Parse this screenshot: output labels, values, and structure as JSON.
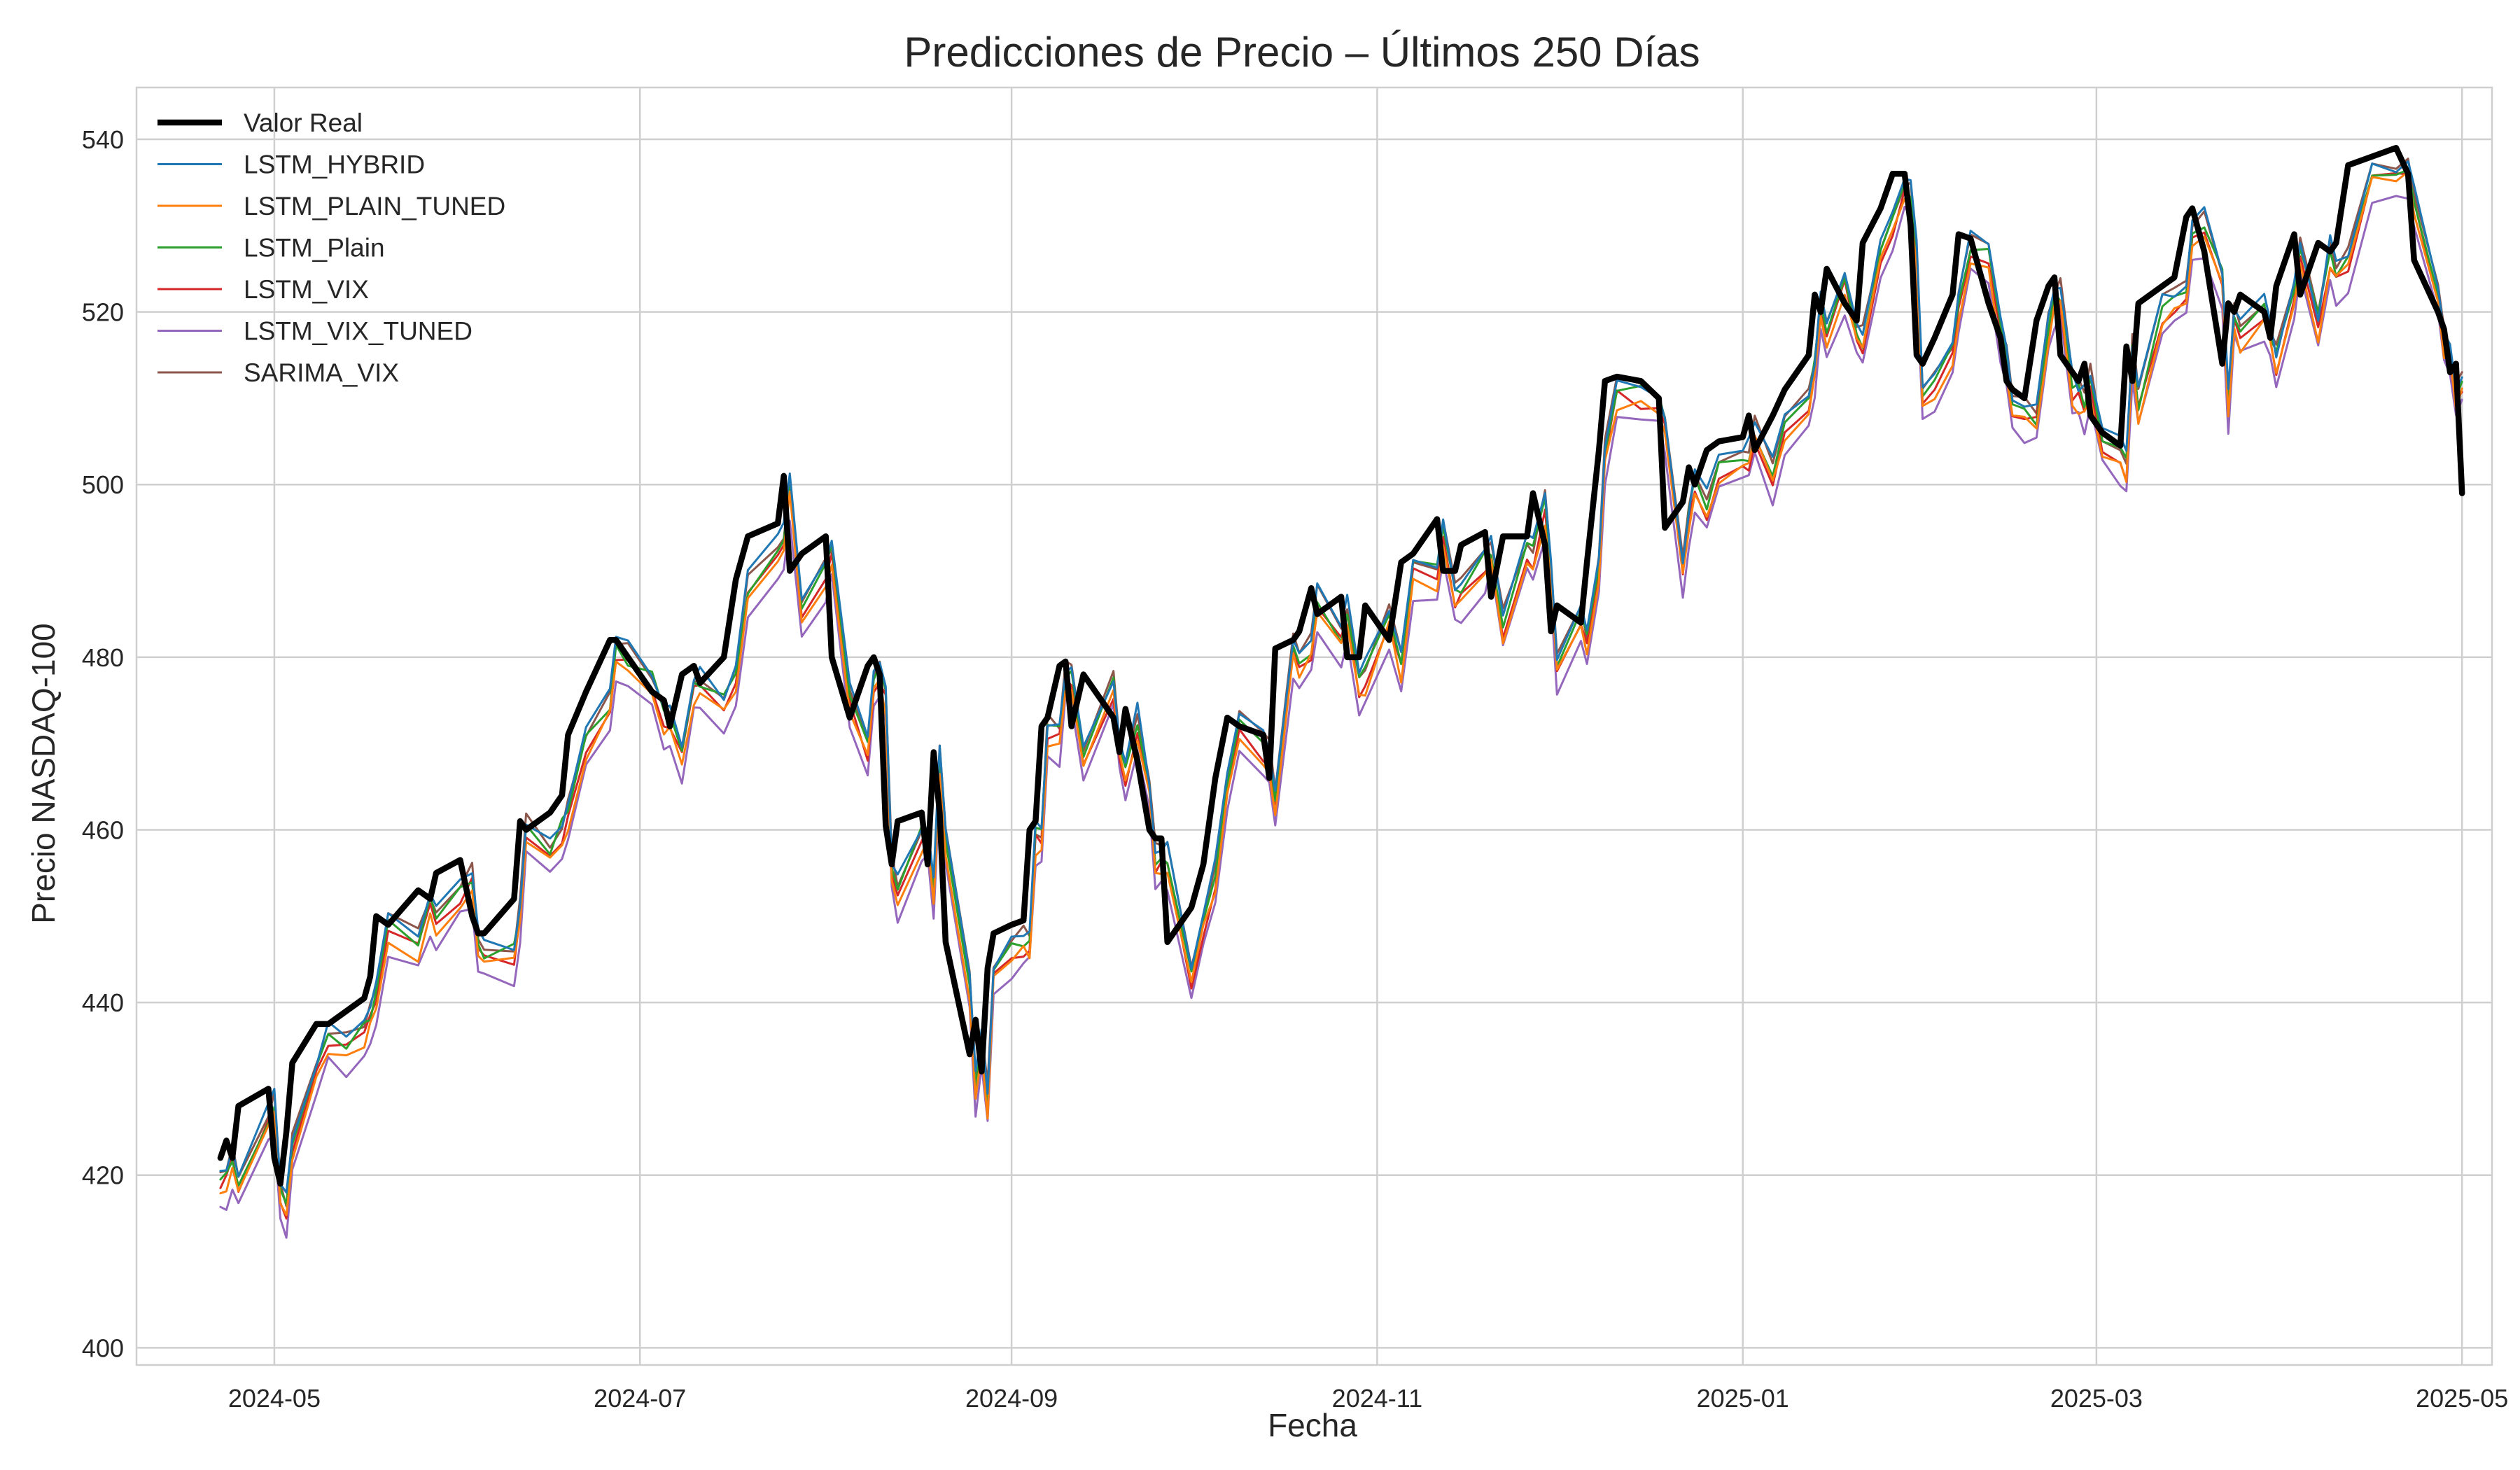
{
  "chart_data": {
    "type": "line",
    "title": "Predicciones de Precio – Últimos 250 Días",
    "xlabel": "Fecha",
    "ylabel": "Precio NASDAQ-100",
    "x_type": "date",
    "xlim": [
      "2024-04-08",
      "2025-05-06"
    ],
    "ylim": [
      398,
      546
    ],
    "x_ticks": [
      "2024-05-01",
      "2024-07-01",
      "2024-09-01",
      "2024-11-01",
      "2025-01-01",
      "2025-03-01",
      "2025-05-01"
    ],
    "x_tick_labels": [
      "2024-05",
      "2024-07",
      "2024-09",
      "2024-11",
      "2025-01",
      "2025-03",
      "2025-05"
    ],
    "y_ticks": [
      400,
      420,
      440,
      460,
      480,
      500,
      520,
      540
    ],
    "y_tick_labels": [
      "400",
      "420",
      "440",
      "460",
      "480",
      "500",
      "520",
      "540"
    ],
    "grid": true,
    "legend_position": "top-left",
    "actual_points": [
      [
        "2024-04-22",
        422
      ],
      [
        "2024-04-23",
        424
      ],
      [
        "2024-04-24",
        422
      ],
      [
        "2024-04-25",
        428
      ],
      [
        "2024-04-30",
        430
      ],
      [
        "2024-05-01",
        422
      ],
      [
        "2024-05-02",
        419
      ],
      [
        "2024-05-03",
        425
      ],
      [
        "2024-05-04",
        433
      ],
      [
        "2024-05-08",
        437.5
      ],
      [
        "2024-05-10",
        437.5
      ],
      [
        "2024-05-13",
        439
      ],
      [
        "2024-05-16",
        440.5
      ],
      [
        "2024-05-17",
        443
      ],
      [
        "2024-05-18",
        450
      ],
      [
        "2024-05-20",
        449
      ],
      [
        "2024-05-25",
        453
      ],
      [
        "2024-05-27",
        452
      ],
      [
        "2024-05-28",
        455
      ],
      [
        "2024-06-01",
        456.5
      ],
      [
        "2024-06-03",
        450
      ],
      [
        "2024-06-04",
        448
      ],
      [
        "2024-06-05",
        448
      ],
      [
        "2024-06-10",
        452
      ],
      [
        "2024-06-11",
        461
      ],
      [
        "2024-06-12",
        460
      ],
      [
        "2024-06-16",
        462
      ],
      [
        "2024-06-18",
        464
      ],
      [
        "2024-06-19",
        471
      ],
      [
        "2024-06-22",
        476
      ],
      [
        "2024-06-26",
        482
      ],
      [
        "2024-06-27",
        482
      ],
      [
        "2024-06-29",
        480
      ],
      [
        "2024-07-03",
        476
      ],
      [
        "2024-07-05",
        475
      ],
      [
        "2024-07-06",
        472
      ],
      [
        "2024-07-08",
        478
      ],
      [
        "2024-07-10",
        479
      ],
      [
        "2024-07-11",
        477
      ],
      [
        "2024-07-15",
        480
      ],
      [
        "2024-07-17",
        489
      ],
      [
        "2024-07-19",
        494
      ],
      [
        "2024-07-24",
        495.5
      ],
      [
        "2024-07-25",
        501
      ],
      [
        "2024-07-26",
        490
      ],
      [
        "2024-07-28",
        492
      ],
      [
        "2024-08-01",
        494
      ],
      [
        "2024-08-02",
        480
      ],
      [
        "2024-08-05",
        473
      ],
      [
        "2024-08-08",
        479
      ],
      [
        "2024-08-09",
        480
      ],
      [
        "2024-08-10",
        478
      ],
      [
        "2024-08-11",
        460.5
      ],
      [
        "2024-08-12",
        456
      ],
      [
        "2024-08-13",
        461
      ],
      [
        "2024-08-17",
        462
      ],
      [
        "2024-08-18",
        456
      ],
      [
        "2024-08-19",
        469
      ],
      [
        "2024-08-20",
        462
      ],
      [
        "2024-08-21",
        447
      ],
      [
        "2024-08-25",
        434
      ],
      [
        "2024-08-26",
        438
      ],
      [
        "2024-08-27",
        432
      ],
      [
        "2024-08-28",
        444
      ],
      [
        "2024-08-29",
        448
      ],
      [
        "2024-09-01",
        449
      ],
      [
        "2024-09-03",
        449.5
      ],
      [
        "2024-09-04",
        460
      ],
      [
        "2024-09-05",
        461
      ],
      [
        "2024-09-06",
        472
      ],
      [
        "2024-09-07",
        473
      ],
      [
        "2024-09-09",
        479
      ],
      [
        "2024-09-10",
        479.5
      ],
      [
        "2024-09-11",
        472
      ],
      [
        "2024-09-13",
        478
      ],
      [
        "2024-09-18",
        473
      ],
      [
        "2024-09-19",
        469
      ],
      [
        "2024-09-20",
        474
      ],
      [
        "2024-09-22",
        468
      ],
      [
        "2024-09-24",
        460
      ],
      [
        "2024-09-25",
        459
      ],
      [
        "2024-09-26",
        459
      ],
      [
        "2024-09-27",
        447
      ],
      [
        "2024-10-01",
        451
      ],
      [
        "2024-10-03",
        456
      ],
      [
        "2024-10-05",
        466
      ],
      [
        "2024-10-07",
        473
      ],
      [
        "2024-10-09",
        472
      ],
      [
        "2024-10-13",
        471
      ],
      [
        "2024-10-14",
        466
      ],
      [
        "2024-10-15",
        481
      ],
      [
        "2024-10-18",
        482
      ],
      [
        "2024-10-19",
        483
      ],
      [
        "2024-10-21",
        488
      ],
      [
        "2024-10-22",
        485
      ],
      [
        "2024-10-26",
        487
      ],
      [
        "2024-10-27",
        480
      ],
      [
        "2024-10-29",
        480
      ],
      [
        "2024-10-30",
        486
      ],
      [
        "2024-11-03",
        482
      ],
      [
        "2024-11-05",
        491
      ],
      [
        "2024-11-07",
        492
      ],
      [
        "2024-11-11",
        496
      ],
      [
        "2024-11-12",
        490
      ],
      [
        "2024-11-14",
        490
      ],
      [
        "2024-11-15",
        493
      ],
      [
        "2024-11-19",
        494.5
      ],
      [
        "2024-11-20",
        487
      ],
      [
        "2024-11-22",
        494
      ],
      [
        "2024-11-26",
        494
      ],
      [
        "2024-11-27",
        499
      ],
      [
        "2024-11-29",
        493
      ],
      [
        "2024-11-30",
        483
      ],
      [
        "2024-12-01",
        486
      ],
      [
        "2024-12-05",
        484
      ],
      [
        "2024-12-06",
        491
      ],
      [
        "2024-12-08",
        504
      ],
      [
        "2024-12-09",
        512
      ],
      [
        "2024-12-11",
        512.5
      ],
      [
        "2024-12-15",
        512
      ],
      [
        "2024-12-18",
        510
      ],
      [
        "2024-12-19",
        495
      ],
      [
        "2024-12-22",
        498
      ],
      [
        "2024-12-23",
        502
      ],
      [
        "2024-12-24",
        500
      ],
      [
        "2024-12-26",
        504
      ],
      [
        "2024-12-28",
        505
      ],
      [
        "2025-01-01",
        505.5
      ],
      [
        "2025-01-02",
        508
      ],
      [
        "2025-01-03",
        504
      ],
      [
        "2025-01-06",
        508
      ],
      [
        "2025-01-08",
        511
      ],
      [
        "2025-01-12",
        515
      ],
      [
        "2025-01-13",
        522
      ],
      [
        "2025-01-14",
        520
      ],
      [
        "2025-01-15",
        525
      ],
      [
        "2025-01-18",
        521
      ],
      [
        "2025-01-20",
        519
      ],
      [
        "2025-01-21",
        528
      ],
      [
        "2025-01-24",
        532
      ],
      [
        "2025-01-26",
        536
      ],
      [
        "2025-01-28",
        536
      ],
      [
        "2025-01-29",
        530
      ],
      [
        "2025-01-30",
        515
      ],
      [
        "2025-01-31",
        514
      ],
      [
        "2025-02-02",
        517
      ],
      [
        "2025-02-05",
        522
      ],
      [
        "2025-02-06",
        529
      ],
      [
        "2025-02-08",
        528.5
      ],
      [
        "2025-02-11",
        521
      ],
      [
        "2025-02-13",
        517
      ],
      [
        "2025-02-14",
        512
      ],
      [
        "2025-02-15",
        511
      ],
      [
        "2025-02-17",
        510
      ],
      [
        "2025-02-19",
        519
      ],
      [
        "2025-02-21",
        523
      ],
      [
        "2025-02-22",
        524
      ],
      [
        "2025-02-23",
        515
      ],
      [
        "2025-02-25",
        513
      ],
      [
        "2025-02-26",
        512
      ],
      [
        "2025-02-27",
        514
      ],
      [
        "2025-02-28",
        508
      ],
      [
        "2025-03-02",
        506
      ],
      [
        "2025-03-05",
        504.5
      ],
      [
        "2025-03-06",
        516
      ],
      [
        "2025-03-07",
        512
      ],
      [
        "2025-03-08",
        521
      ],
      [
        "2025-03-12",
        523
      ],
      [
        "2025-03-14",
        524
      ],
      [
        "2025-03-16",
        531
      ],
      [
        "2025-03-17",
        532
      ],
      [
        "2025-03-19",
        527
      ],
      [
        "2025-03-22",
        514
      ],
      [
        "2025-03-23",
        521
      ],
      [
        "2025-03-24",
        520
      ],
      [
        "2025-03-25",
        522
      ],
      [
        "2025-03-29",
        520
      ],
      [
        "2025-03-30",
        517
      ],
      [
        "2025-03-31",
        523
      ],
      [
        "2025-04-03",
        529
      ],
      [
        "2025-04-04",
        522
      ],
      [
        "2025-04-07",
        528
      ],
      [
        "2025-04-09",
        527
      ],
      [
        "2025-04-10",
        528
      ],
      [
        "2025-04-12",
        537
      ],
      [
        "2025-04-16",
        538
      ],
      [
        "2025-04-20",
        539
      ],
      [
        "2025-04-22",
        536
      ],
      [
        "2025-04-23",
        526
      ],
      [
        "2025-04-27",
        520
      ],
      [
        "2025-04-28",
        518
      ],
      [
        "2025-04-29",
        513
      ],
      [
        "2025-04-30",
        514
      ],
      [
        "2025-05-01",
        499
      ]
    ],
    "series": [
      {
        "name": "Valor Real",
        "color": "#000000"
      },
      {
        "name": "LSTM_HYBRID",
        "color": "#1f77b4"
      },
      {
        "name": "LSTM_PLAIN_TUNED",
        "color": "#ff7f0e"
      },
      {
        "name": "LSTM_Plain",
        "color": "#2ca02c"
      },
      {
        "name": "LSTM_VIX",
        "color": "#d62728"
      },
      {
        "name": "LSTM_VIX_TUNED",
        "color": "#9467bd"
      },
      {
        "name": "SARIMA_VIX",
        "color": "#8c564b"
      }
    ]
  }
}
